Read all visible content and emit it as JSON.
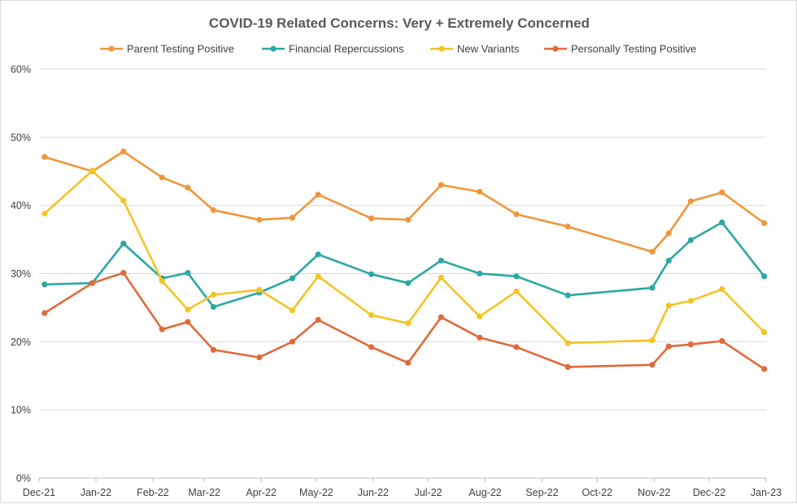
{
  "chart_data": {
    "type": "line",
    "title": "COVID-19 Related Concerns: Very + Extremely Concerned",
    "xlabel": "",
    "ylabel": "",
    "ylim": [
      0,
      60
    ],
    "y_ticks": [
      "0%",
      "10%",
      "20%",
      "30%",
      "40%",
      "50%",
      "60%"
    ],
    "x_range": [
      "2021-12-01",
      "2023-01-01"
    ],
    "x_ticks": [
      "Dec-21",
      "Jan-22",
      "Feb-22",
      "Mar-22",
      "Apr-22",
      "May-22",
      "Jun-22",
      "Jul-22",
      "Aug-22",
      "Sep-22",
      "Oct-22",
      "Nov-22",
      "Dec-22",
      "Jan-23"
    ],
    "x_tick_dates": [
      "2021-12-01",
      "2022-01-01",
      "2022-02-01",
      "2022-03-01",
      "2022-04-01",
      "2022-05-01",
      "2022-06-01",
      "2022-07-01",
      "2022-08-01",
      "2022-09-01",
      "2022-10-01",
      "2022-11-01",
      "2022-12-01",
      "2023-01-01"
    ],
    "grid": true,
    "legend": "top",
    "x": [
      "2021-12-04",
      "2021-12-30",
      "2022-01-16",
      "2022-02-06",
      "2022-02-20",
      "2022-03-06",
      "2022-03-31",
      "2022-04-18",
      "2022-05-02",
      "2022-05-31",
      "2022-06-20",
      "2022-07-08",
      "2022-07-29",
      "2022-08-18",
      "2022-09-15",
      "2022-10-31",
      "2022-11-09",
      "2022-11-21",
      "2022-12-08",
      "2022-12-31"
    ],
    "series": [
      {
        "name": "Parent Testing Positive",
        "color": "#F0963A",
        "values": [
          47.1,
          45.0,
          47.9,
          44.1,
          42.6,
          39.3,
          37.9,
          38.2,
          41.6,
          38.1,
          37.9,
          43.0,
          42.0,
          38.7,
          36.9,
          33.2,
          35.9,
          40.6,
          41.9,
          37.4
        ]
      },
      {
        "name": "Financial Repercussions",
        "color": "#2BA8A3",
        "values": [
          28.4,
          28.6,
          34.4,
          29.3,
          30.1,
          25.1,
          27.2,
          29.3,
          32.8,
          29.9,
          28.6,
          31.9,
          30.0,
          29.6,
          26.8,
          27.9,
          31.9,
          34.9,
          37.5,
          29.6
        ]
      },
      {
        "name": "New Variants",
        "color": "#F5C325",
        "values": [
          38.8,
          45.1,
          40.7,
          28.9,
          24.7,
          26.9,
          27.6,
          24.6,
          29.6,
          23.9,
          22.7,
          29.4,
          23.7,
          27.4,
          19.8,
          20.2,
          25.3,
          26.0,
          27.7,
          21.4
        ]
      },
      {
        "name": "Personally Testing Positive",
        "color": "#E06A3B",
        "values": [
          24.2,
          28.6,
          30.1,
          21.8,
          22.9,
          18.8,
          17.7,
          20.0,
          23.2,
          19.2,
          16.9,
          23.6,
          20.6,
          19.2,
          16.3,
          16.6,
          19.3,
          19.6,
          20.1,
          16.0
        ]
      }
    ]
  }
}
